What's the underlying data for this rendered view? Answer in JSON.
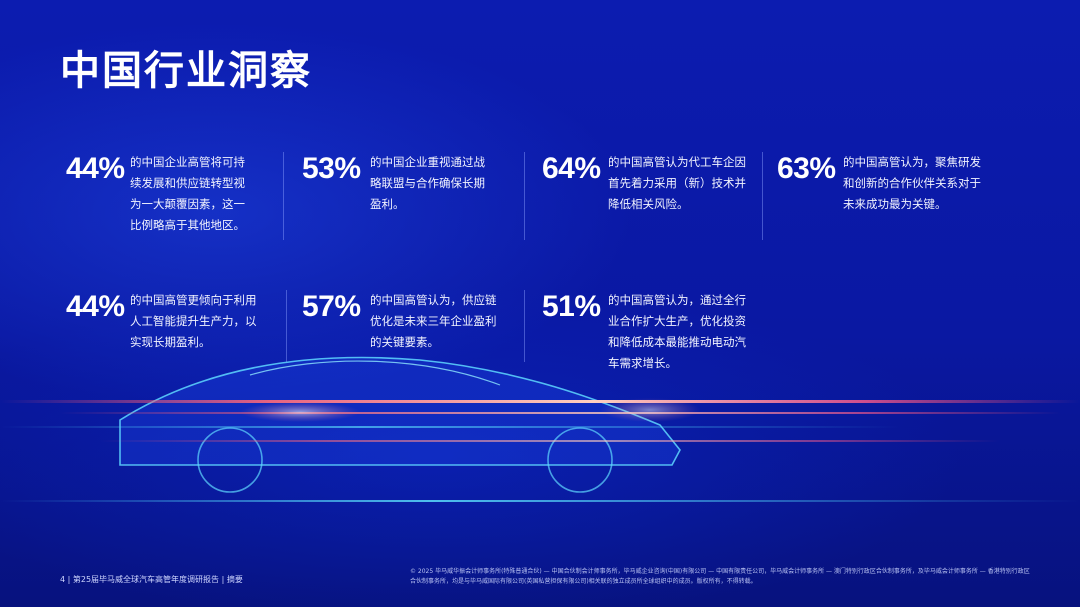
{
  "page": {
    "title": "中国行业洞察"
  },
  "stats": [
    {
      "pct": "44%",
      "text": "的中国企业高管将可持续发展和供应链转型视为一大颠覆因素，这一比例略高于其他地区。"
    },
    {
      "pct": "53%",
      "text": "的中国企业重视通过战略联盟与合作确保长期盈利。"
    },
    {
      "pct": "64%",
      "text": "的中国高管认为代工车企因首先着力采用（新）技术并降低相关风险。"
    },
    {
      "pct": "63%",
      "text": "的中国高管认为，聚焦研发和创新的合作伙伴关系对于未来成功最为关键。"
    },
    {
      "pct": "44%",
      "text": "的中国高管更倾向于利用人工智能提升生产力，以实现长期盈利。"
    },
    {
      "pct": "57%",
      "text": "的中国高管认为，供应链优化是未来三年企业盈利的关键要素。"
    },
    {
      "pct": "51%",
      "text": "的中国高管认为，通过全行业合作扩大生产，优化投资和降低成本最能推动电动汽车需求增长。"
    }
  ],
  "footer": {
    "left": "4 | 第25届毕马威全球汽车高管年度调研报告 | 摘要",
    "right": "© 2025 毕马威华振会计师事务所(特殊普通合伙) — 中国合伙制会计师事务所，毕马威企业咨询(中国)有限公司 — 中国有限责任公司，毕马威会计师事务所 — 澳门特别行政区合伙制事务所，及毕马威会计师事务所 — 香港特别行政区合伙制事务所，均是与毕马威国际有限公司(英国私营担保有限公司)相关联的独立成员所全球组织中的成员。版权所有，不得转载。"
  },
  "colors": {
    "background": "#0b1aa8",
    "text": "#ffffff",
    "divider": "#8ca0ff",
    "light_streak_red": "#ff5a6e",
    "light_streak_cyan": "#4fd8ff"
  }
}
